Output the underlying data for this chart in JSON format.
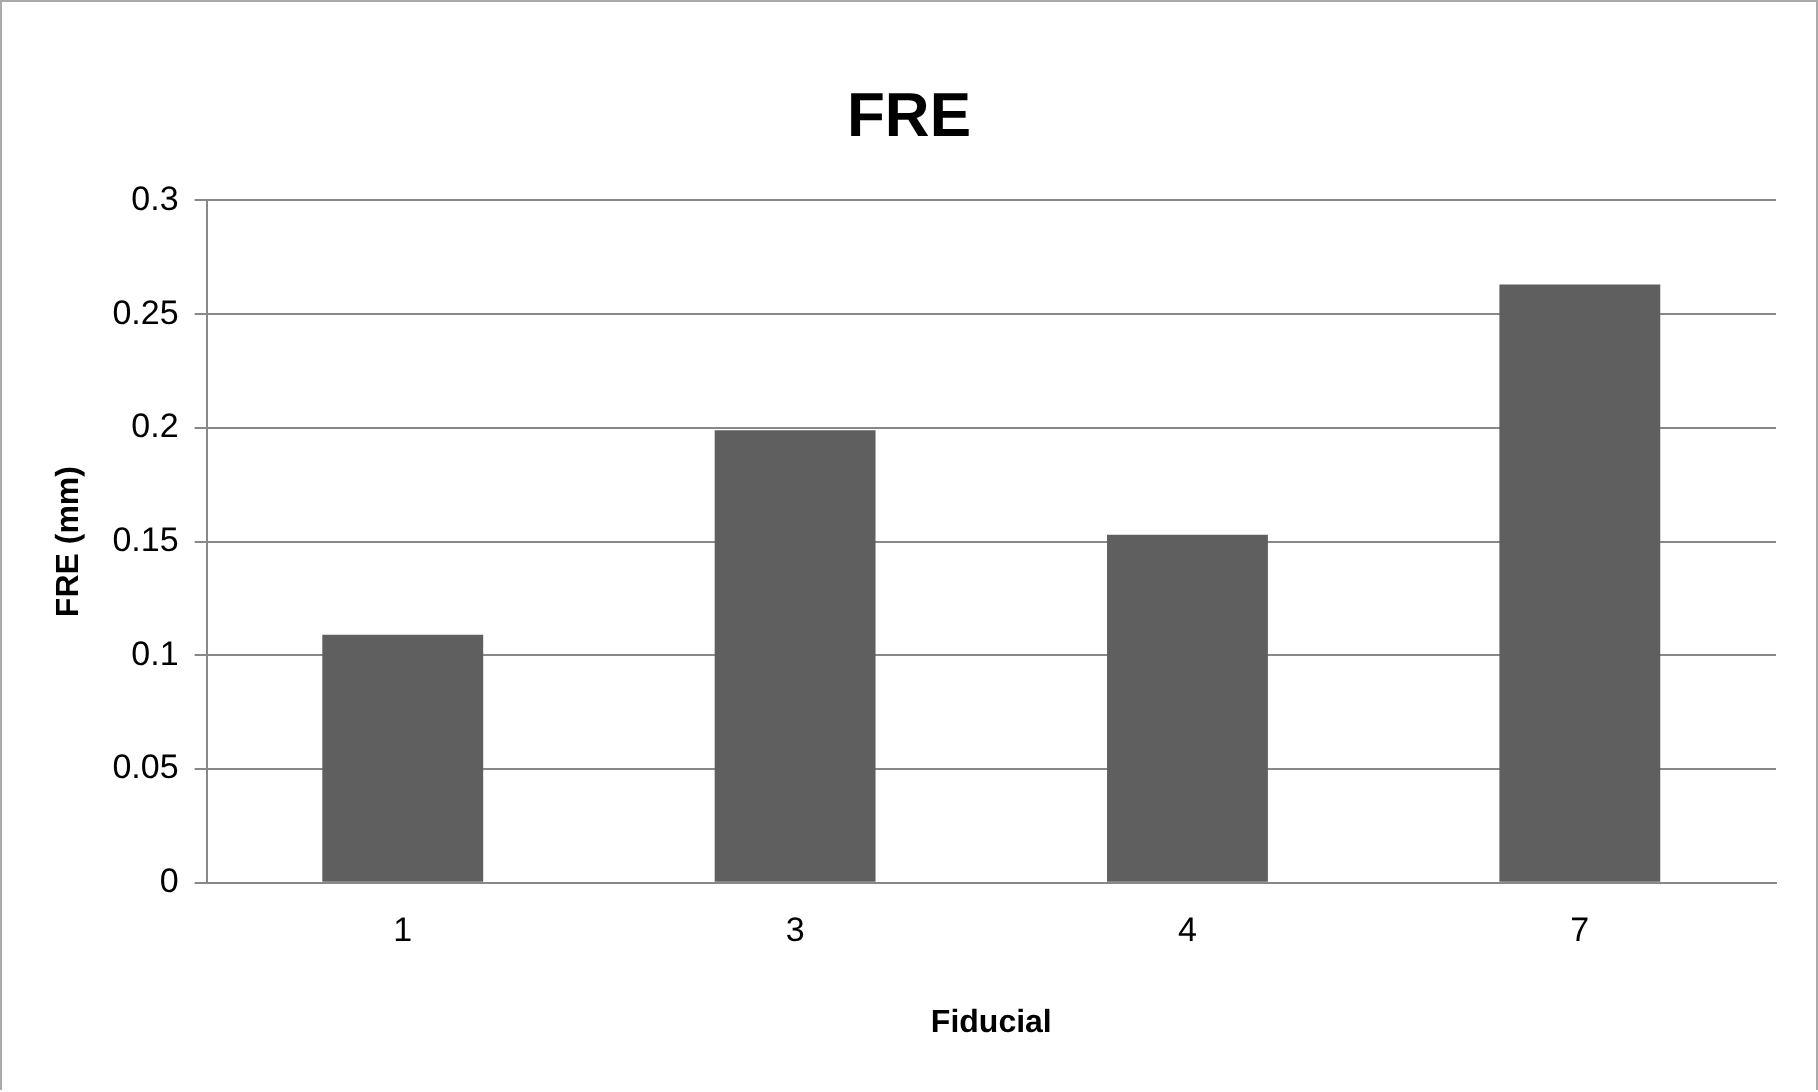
{
  "chart_data": {
    "type": "bar",
    "title": "FRE",
    "xlabel": "Fiducial",
    "ylabel": "FRE (mm)",
    "categories": [
      "1",
      "3",
      "4",
      "7"
    ],
    "values": [
      0.109,
      0.199,
      0.153,
      0.263
    ],
    "color": "#5f5f5f",
    "ylim": [
      0,
      0.3
    ],
    "yticks": [
      0,
      0.05,
      0.1,
      0.15,
      0.2,
      0.25,
      0.3
    ],
    "grid": "y",
    "legend": false
  }
}
